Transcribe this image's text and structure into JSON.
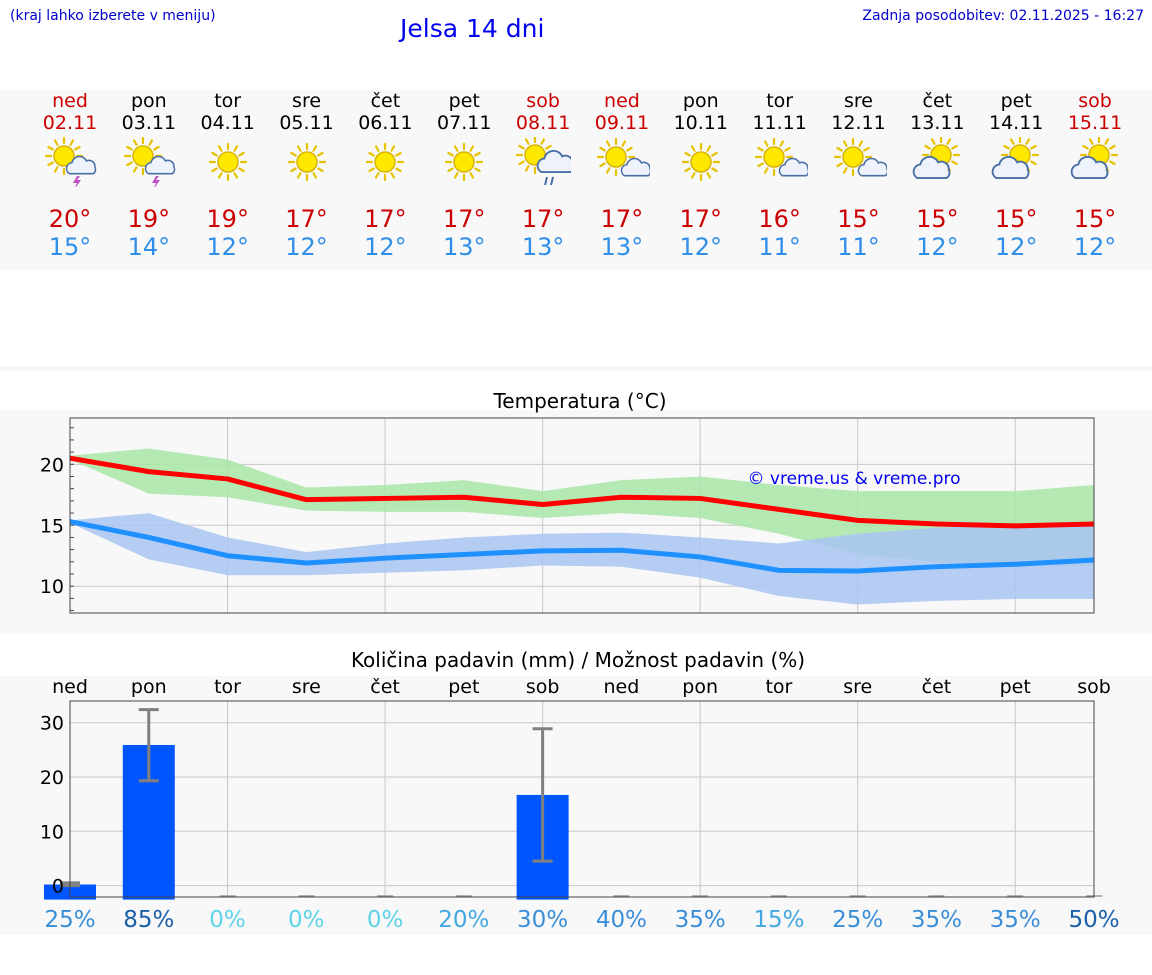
{
  "header": {
    "menu_note": "(kraj lahko izberete v meniju)",
    "title": "Jelsa 14 dni",
    "updated": "Zadnja posodobitev: 02.11.2025 - 16:27"
  },
  "days": [
    {
      "name": "ned",
      "date": "02.11",
      "weekend": true,
      "icon": "sun-thunder-icon",
      "tmax": "20°",
      "tmin": "15°"
    },
    {
      "name": "pon",
      "date": "03.11",
      "weekend": false,
      "icon": "sun-thunder-icon",
      "tmax": "19°",
      "tmin": "14°"
    },
    {
      "name": "tor",
      "date": "04.11",
      "weekend": false,
      "icon": "sun-icon",
      "tmax": "19°",
      "tmin": "12°"
    },
    {
      "name": "sre",
      "date": "05.11",
      "weekend": false,
      "icon": "sun-icon",
      "tmax": "17°",
      "tmin": "12°"
    },
    {
      "name": "čet",
      "date": "06.11",
      "weekend": false,
      "icon": "sun-icon",
      "tmax": "17°",
      "tmin": "12°"
    },
    {
      "name": "pet",
      "date": "07.11",
      "weekend": false,
      "icon": "sun-icon",
      "tmax": "17°",
      "tmin": "13°"
    },
    {
      "name": "sob",
      "date": "08.11",
      "weekend": true,
      "icon": "sun-cloud-rain-icon",
      "tmax": "17°",
      "tmin": "13°"
    },
    {
      "name": "ned",
      "date": "09.11",
      "weekend": true,
      "icon": "sun-small-cloud-icon",
      "tmax": "17°",
      "tmin": "13°"
    },
    {
      "name": "pon",
      "date": "10.11",
      "weekend": false,
      "icon": "sun-icon",
      "tmax": "17°",
      "tmin": "12°"
    },
    {
      "name": "tor",
      "date": "11.11",
      "weekend": false,
      "icon": "sun-small-cloud-icon",
      "tmax": "16°",
      "tmin": "11°"
    },
    {
      "name": "sre",
      "date": "12.11",
      "weekend": false,
      "icon": "sun-small-cloud-icon",
      "tmax": "15°",
      "tmin": "11°"
    },
    {
      "name": "čet",
      "date": "13.11",
      "weekend": false,
      "icon": "sun-cloud-icon",
      "tmax": "15°",
      "tmin": "12°"
    },
    {
      "name": "pet",
      "date": "14.11",
      "weekend": false,
      "icon": "sun-cloud-icon",
      "tmax": "15°",
      "tmin": "12°"
    },
    {
      "name": "sob",
      "date": "15.11",
      "weekend": true,
      "icon": "sun-cloud-icon",
      "tmax": "15°",
      "tmin": "12°"
    }
  ],
  "colors": {
    "max": "#ff0000",
    "max_band": "#a8e6a8",
    "min": "#1e90ff",
    "min_band": "#a9c4f2",
    "bar": "#0055ff",
    "err": "#808080"
  },
  "chart_data": [
    {
      "type": "line",
      "title": "Temperatura (°C)",
      "watermark": "© vreme.us & vreme.pro",
      "ylim": [
        7.8,
        23.8
      ],
      "yticks": [
        10,
        15,
        20
      ],
      "x": [
        0,
        1,
        2,
        3,
        4,
        5,
        6,
        7,
        8,
        9,
        10,
        11,
        12,
        13
      ],
      "grid": true,
      "series": [
        {
          "name": "max",
          "values": [
            20.5,
            19.4,
            18.8,
            17.1,
            17.2,
            17.3,
            16.7,
            17.3,
            17.2,
            16.3,
            15.4,
            15.1,
            14.95,
            15.1
          ],
          "low": [
            20.4,
            17.6,
            17.3,
            16.2,
            16.1,
            16.1,
            15.6,
            16.0,
            15.6,
            14.3,
            12.6,
            12.0,
            11.7,
            11.7
          ],
          "high": [
            20.7,
            21.3,
            20.4,
            18.1,
            18.3,
            18.7,
            17.8,
            18.7,
            19.0,
            18.3,
            17.8,
            17.8,
            17.8,
            18.3
          ]
        },
        {
          "name": "min",
          "values": [
            15.3,
            14.0,
            12.5,
            11.9,
            12.3,
            12.6,
            12.9,
            12.95,
            12.4,
            11.3,
            11.25,
            11.6,
            11.8,
            12.15
          ],
          "low": [
            15.2,
            12.2,
            10.9,
            10.9,
            11.1,
            11.3,
            11.7,
            11.6,
            10.7,
            9.2,
            8.5,
            8.8,
            8.95,
            8.95
          ],
          "high": [
            15.4,
            16.0,
            14.0,
            12.8,
            13.5,
            14.0,
            14.3,
            14.4,
            14.0,
            13.5,
            14.3,
            14.8,
            15.0,
            15.3
          ]
        }
      ]
    },
    {
      "type": "bar",
      "title": "Količina padavin (mm) / Možnost padavin (%)",
      "categories": [
        "ned",
        "pon",
        "tor",
        "sre",
        "čet",
        "pet",
        "sob",
        "ned",
        "pon",
        "tor",
        "sre",
        "čet",
        "pet",
        "sob"
      ],
      "values": [
        0.2,
        25.9,
        0,
        0,
        0,
        0,
        16.7,
        0,
        0,
        0,
        0,
        0,
        0,
        0
      ],
      "err_low": [
        0,
        19.3,
        0,
        0,
        0,
        0,
        4.5,
        0,
        0,
        0,
        0,
        0,
        0,
        0
      ],
      "err_high": [
        0.5,
        32.4,
        0,
        0,
        0,
        0,
        28.9,
        0,
        0,
        0,
        0,
        0,
        0,
        0
      ],
      "ylim": [
        -2.1,
        34.0
      ],
      "yticks": [
        0,
        10,
        20,
        30
      ],
      "grid": true,
      "probability": [
        "25%",
        "85%",
        "0%",
        "0%",
        "0%",
        "20%",
        "30%",
        "40%",
        "35%",
        "15%",
        "25%",
        "35%",
        "35%",
        "50%"
      ],
      "probability_colors": [
        "#3a8ed8",
        "#1a5fa8",
        "#5ed4e8",
        "#5ed4e8",
        "#5ed4e8",
        "#44a8e0",
        "#3a8ed8",
        "#3a8ed8",
        "#3a8ed8",
        "#44a8e0",
        "#3a8ed8",
        "#3a8ed8",
        "#3a8ed8",
        "#1a5fa8"
      ]
    }
  ]
}
